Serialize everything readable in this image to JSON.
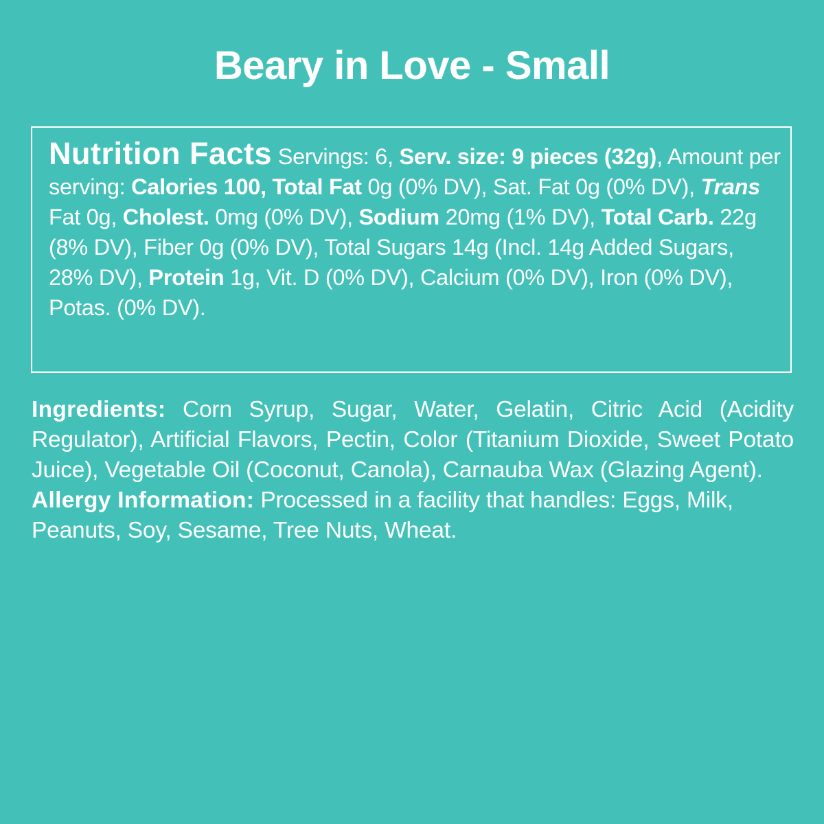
{
  "title": "Beary in Love - Small",
  "background_color": "#43c1b8",
  "nutrition": {
    "heading": "Nutrition Facts",
    "segments": [
      {
        "text": " Servings: 6, ",
        "style": ""
      },
      {
        "text": "Serv. size: 9 pieces (32g)",
        "style": "b"
      },
      {
        "text": ", Amount per serving: ",
        "style": ""
      },
      {
        "text": "Calories 100, Total Fat",
        "style": "b"
      },
      {
        "text": " 0g (0% DV), Sat. Fat 0g (0% DV), ",
        "style": ""
      },
      {
        "text": "Trans",
        "style": "b i"
      },
      {
        "text": " Fat 0g, ",
        "style": ""
      },
      {
        "text": "Cholest.",
        "style": "b"
      },
      {
        "text": " 0mg (0% DV), ",
        "style": ""
      },
      {
        "text": "Sodium",
        "style": "b"
      },
      {
        "text": " 20mg (1% DV), ",
        "style": ""
      },
      {
        "text": "Total Carb.",
        "style": "b"
      },
      {
        "text": " 22g (8% DV), Fiber 0g (0% DV), Total Sugars 14g (Incl. 14g Added Sugars, 28% DV), ",
        "style": ""
      },
      {
        "text": "Protein",
        "style": "b"
      },
      {
        "text": " 1g, Vit. D (0% DV), Calcium (0% DV), Iron (0% DV), Potas. (0% DV).",
        "style": ""
      }
    ]
  },
  "ingredients": {
    "label": "Ingredients:",
    "text": " Corn Syrup, Sugar, Water, Gelatin, Citric Acid (Acidity Regulator), Artificial Flavors, Pectin, Color (Titanium Dioxide, Sweet Potato Juice), Vegetable Oil (Coconut, Canola), Carnauba Wax (Glazing Agent)."
  },
  "allergy": {
    "label": "Allergy Information:",
    "text": " Processed in a facility that handles: Eggs, Milk, Peanuts, Soy, Sesame, Tree Nuts, Wheat."
  }
}
